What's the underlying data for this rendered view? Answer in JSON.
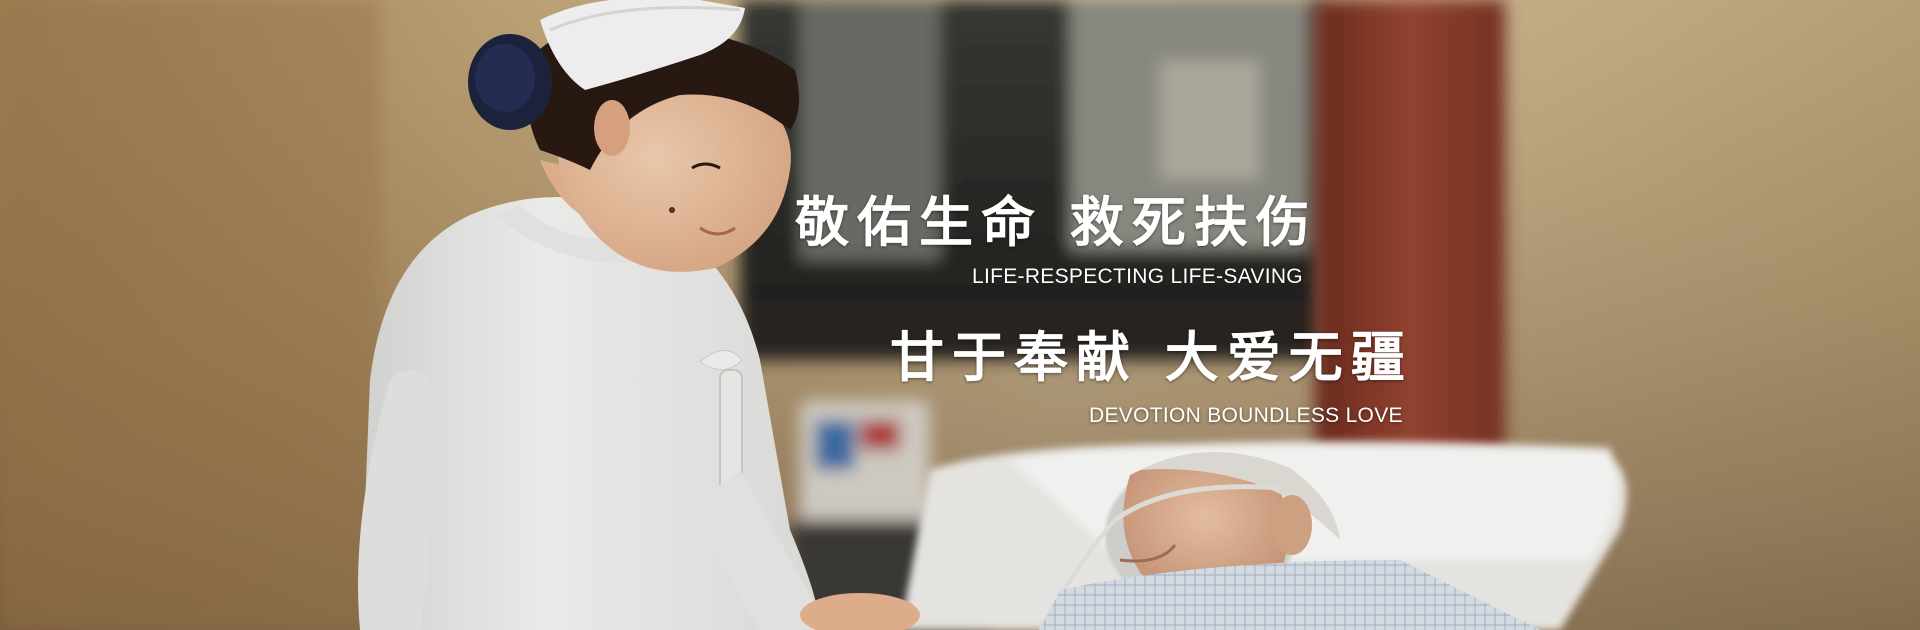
{
  "banner": {
    "line1_cn": "敬佑生命  救死扶伤",
    "line1_en": "LIFE-RESPECTING  LIFE-SAVING",
    "line2_cn": "甘于奉献  大爱无疆",
    "line2_en": "DEVOTION  BOUNDLESS LOVE"
  },
  "colors": {
    "text": "#ffffff",
    "wall_warm": "#b89a6e",
    "curtain": "#8a3a2a",
    "uniform": "#f4f4f2"
  },
  "scene": {
    "subjects": [
      "nurse-figure",
      "elderly-patient-figure"
    ]
  }
}
